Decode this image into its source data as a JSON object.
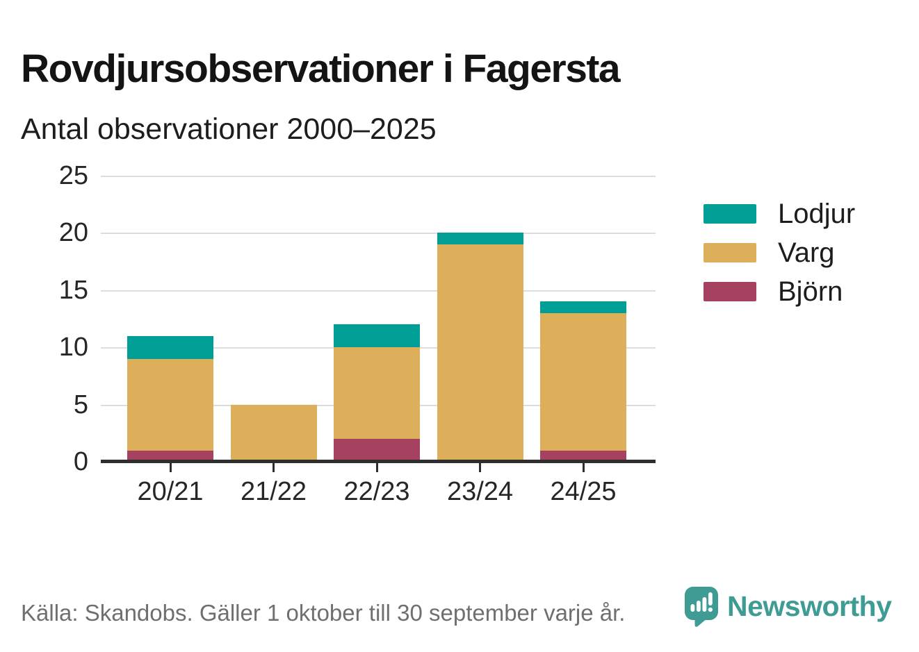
{
  "header": {
    "title": "Rovdjursobservationer i Fagersta",
    "subtitle": "Antal observationer 2000–2025"
  },
  "chart_data": {
    "type": "bar",
    "stacked": true,
    "title": "Rovdjursobservationer i Fagersta",
    "subtitle": "Antal observationer 2000–2025",
    "categories": [
      "20/21",
      "21/22",
      "22/23",
      "23/24",
      "24/25"
    ],
    "series": [
      {
        "name": "Björn",
        "color": "#A6425F",
        "values": [
          1,
          0,
          2,
          0,
          1
        ]
      },
      {
        "name": "Varg",
        "color": "#DDAF5B",
        "values": [
          8,
          5,
          8,
          19,
          12
        ]
      },
      {
        "name": "Lodjur",
        "color": "#019E96",
        "values": [
          2,
          0,
          2,
          1,
          1
        ]
      }
    ],
    "totals": [
      11,
      5,
      12,
      20,
      14
    ],
    "xlabel": "",
    "ylabel": "",
    "ylim": [
      0,
      25
    ],
    "yticks": [
      0,
      5,
      10,
      15,
      20,
      25
    ],
    "grid": true,
    "legend_position": "right",
    "legend_order": [
      "Lodjur",
      "Varg",
      "Björn"
    ]
  },
  "legend": {
    "items": [
      {
        "label": "Lodjur",
        "color": "#019E96"
      },
      {
        "label": "Varg",
        "color": "#DDAF5B"
      },
      {
        "label": "Björn",
        "color": "#A6425F"
      }
    ]
  },
  "footer": {
    "source": "Källa: Skandobs. Gäller 1 oktober till 30 september varje år.",
    "brand": "Newsworthy",
    "brand_color": "#3F9C95"
  }
}
